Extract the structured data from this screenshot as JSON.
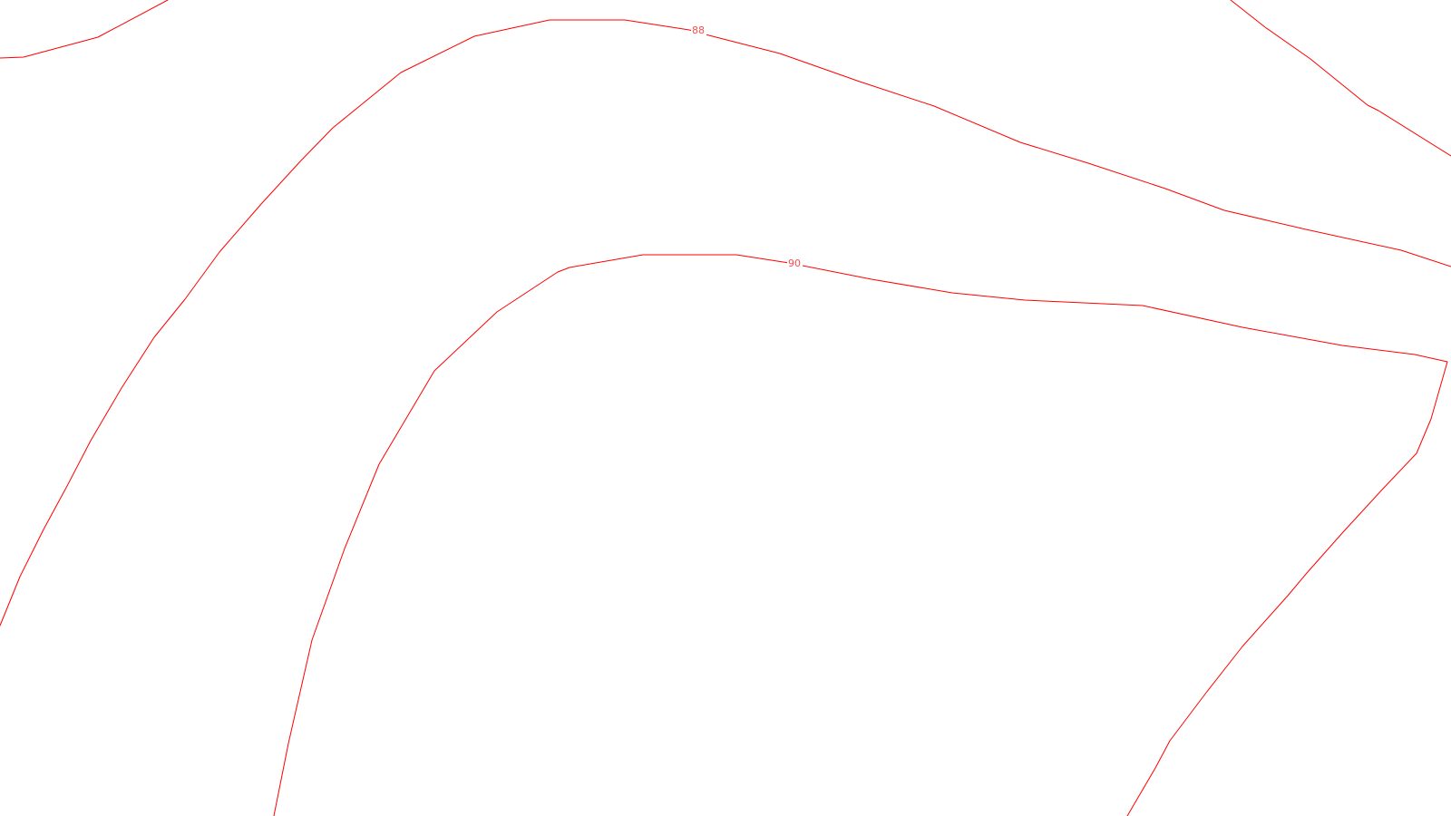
{
  "map": {
    "background_color": "#ffffff",
    "contour_color": "#ff0000",
    "label_color": "#ff4d4d",
    "contours": [
      {
        "id": "contour-88",
        "elevation_label": "88"
      },
      {
        "id": "contour-90",
        "elevation_label": "90"
      },
      {
        "id": "contour-upper-left",
        "elevation_label": ""
      },
      {
        "id": "contour-upper-right",
        "elevation_label": ""
      }
    ]
  }
}
